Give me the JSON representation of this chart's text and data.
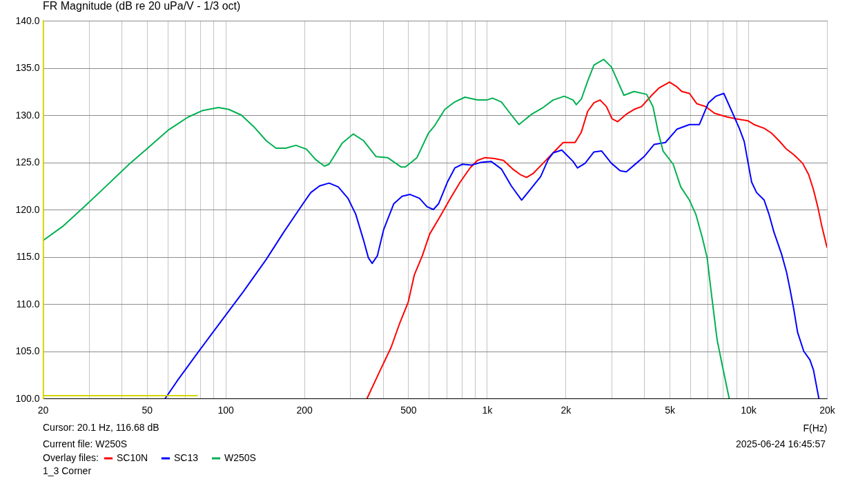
{
  "chart_data": {
    "type": "line",
    "title": "FR Magnitude (dB re 20 uPa/V - 1/3 oct)",
    "xlabel": "F(Hz)",
    "legend_title": "Overlay files:",
    "annotations": [
      "Cursor: 20.1 Hz, 116.68 dB",
      "Current file: W250S",
      "1_3 Corner",
      "2025-06-24  16:45:57"
    ],
    "log": "x",
    "grid": true,
    "legend": "bottom left",
    "xlim": [
      20,
      20000
    ],
    "ylim": [
      100,
      140
    ],
    "xticks": [
      20,
      {
        "value": 30,
        "label": null
      },
      {
        "value": 40,
        "label": null
      },
      50,
      {
        "value": 60,
        "label": null
      },
      {
        "value": 70,
        "label": null
      },
      {
        "value": 80,
        "label": null
      },
      {
        "value": 90,
        "label": null
      },
      100,
      200,
      {
        "value": 300,
        "label": null
      },
      {
        "value": 400,
        "label": null
      },
      500,
      {
        "value": 600,
        "label": null
      },
      {
        "value": 700,
        "label": null
      },
      {
        "value": 800,
        "label": null
      },
      {
        "value": 900,
        "label": null
      },
      {
        "value": 1000,
        "label": "1k"
      },
      {
        "value": 2000,
        "label": "2k"
      },
      {
        "value": 3000,
        "label": null
      },
      {
        "value": 4000,
        "label": null
      },
      {
        "value": 5000,
        "label": "5k"
      },
      {
        "value": 6000,
        "label": null
      },
      {
        "value": 7000,
        "label": null
      },
      {
        "value": 8000,
        "label": null
      },
      {
        "value": 9000,
        "label": null
      },
      {
        "value": 10000,
        "label": "10k"
      },
      {
        "value": 20000,
        "label": "20k"
      }
    ],
    "yticks": [
      {
        "value": 100,
        "label": "100.0"
      },
      {
        "value": 105,
        "label": "105.0"
      },
      {
        "value": 110,
        "label": "110.0"
      },
      {
        "value": 115,
        "label": "115.0"
      },
      {
        "value": 120,
        "label": "120.0"
      },
      {
        "value": 125,
        "label": "125.0"
      },
      {
        "value": 130,
        "label": "130.0"
      },
      {
        "value": 135,
        "label": "135.0"
      },
      {
        "value": 140,
        "label": "140.0"
      }
    ],
    "ref_lines": [
      {
        "axis": "x",
        "value": 20.1,
        "color": "#d4d400"
      }
    ],
    "series": [
      {
        "name": "SC10N",
        "color": "#ff0000",
        "x": [
          348,
          388,
          430,
          466,
          500,
          528,
          566,
          604,
          660,
          722,
          790,
          862,
          920,
          984,
          1070,
          1158,
          1254,
          1342,
          1418,
          1500,
          1640,
          1792,
          1958,
          2080,
          2174,
          2298,
          2430,
          2568,
          2710,
          2866,
          3014,
          3164,
          3416,
          3654,
          3906,
          4272,
          4568,
          4996,
          5330,
          5570,
          5954,
          6360,
          6880,
          7420,
          8300,
          9020,
          9960,
          10520,
          11500,
          12260,
          13100,
          14000,
          14940,
          16140,
          17020,
          17760,
          18440,
          19060,
          20000
        ],
        "values": [
          100.0,
          102.8,
          105.4,
          108.1,
          110.2,
          113.1,
          115.1,
          117.4,
          119.2,
          121.1,
          122.9,
          124.4,
          125.2,
          125.5,
          125.4,
          125.2,
          124.3,
          123.7,
          123.4,
          123.8,
          124.9,
          126.0,
          127.1,
          127.1,
          127.1,
          128.2,
          130.4,
          131.3,
          131.6,
          130.9,
          129.6,
          129.3,
          130.1,
          130.6,
          130.9,
          132.1,
          132.9,
          133.5,
          133.0,
          132.5,
          132.3,
          131.2,
          130.9,
          130.2,
          129.8,
          129.6,
          129.4,
          129.0,
          128.6,
          128.1,
          127.3,
          126.4,
          125.8,
          124.9,
          123.7,
          122.1,
          120.3,
          118.4,
          116.0
        ]
      },
      {
        "name": "SC13",
        "color": "#0000ff",
        "x": [
          58.8,
          65.9,
          78.6,
          98.2,
          117,
          143,
          167,
          200,
          212,
          229,
          249,
          270,
          294,
          315,
          337,
          352,
          364,
          381,
          403,
          440,
          474,
          508,
          552,
          590,
          624,
          653,
          706,
          754,
          806,
          870,
          952,
          1038,
          1136,
          1240,
          1358,
          1484,
          1606,
          1716,
          1792,
          1934,
          2136,
          2222,
          2376,
          2568,
          2748,
          2994,
          3236,
          3416,
          3730,
          3992,
          4368,
          4820,
          5330,
          5954,
          6500,
          7040,
          7520,
          8060,
          8650,
          9240,
          9650,
          9960,
          10300,
          10760,
          11500,
          12000,
          12540,
          13400,
          14000,
          14460,
          14940,
          15440,
          16300,
          17200,
          17760,
          18620
        ],
        "values": [
          100.0,
          102.0,
          104.9,
          108.5,
          111.3,
          114.7,
          117.6,
          120.8,
          121.8,
          122.5,
          122.8,
          122.4,
          121.2,
          119.5,
          116.8,
          114.9,
          114.3,
          115.1,
          117.9,
          120.6,
          121.4,
          121.6,
          121.2,
          120.3,
          120.0,
          120.6,
          122.9,
          124.4,
          124.8,
          124.7,
          125.0,
          125.1,
          124.3,
          122.5,
          121.0,
          122.3,
          123.5,
          125.3,
          126.0,
          126.3,
          125.1,
          124.4,
          124.9,
          126.1,
          126.2,
          124.9,
          124.1,
          124.0,
          124.9,
          125.6,
          126.9,
          127.1,
          128.5,
          129.0,
          129.0,
          131.3,
          132.0,
          132.3,
          130.4,
          128.6,
          127.2,
          125.1,
          122.9,
          121.8,
          121.0,
          119.5,
          117.6,
          115.3,
          113.4,
          111.5,
          109.4,
          107.0,
          105.0,
          104.1,
          103.0,
          100.0
        ]
      },
      {
        "name": "W250S",
        "color": "#00b050",
        "x": [
          20,
          23.8,
          28.8,
          34.7,
          42.4,
          49.4,
          60.3,
          72,
          82,
          94,
          103,
          115,
          128,
          143,
          156,
          170,
          186,
          204,
          221,
          239,
          249,
          279,
          308,
          337,
          377,
          417,
          470,
          488,
          540,
          598,
          632,
          690,
          754,
          824,
          920,
          1000,
          1050,
          1136,
          1226,
          1326,
          1484,
          1640,
          1792,
          1978,
          2136,
          2198,
          2298,
          2430,
          2568,
          2800,
          2994,
          3164,
          3344,
          3654,
          4084,
          4320,
          4514,
          4720,
          5160,
          5516,
          5954,
          6300,
          6660,
          6960,
          7190,
          7352,
          7600,
          7940,
          8450
        ],
        "values": [
          116.7,
          118.2,
          120.3,
          122.4,
          124.7,
          126.3,
          128.4,
          129.8,
          130.5,
          130.8,
          130.6,
          130.0,
          128.8,
          127.3,
          126.5,
          126.5,
          126.8,
          126.4,
          125.3,
          124.6,
          124.8,
          127.0,
          128.0,
          127.3,
          125.6,
          125.5,
          124.5,
          124.5,
          125.5,
          128.1,
          128.9,
          130.6,
          131.4,
          131.9,
          131.6,
          131.6,
          131.8,
          131.4,
          130.2,
          129.0,
          130.1,
          130.8,
          131.6,
          132.0,
          131.6,
          131.1,
          131.7,
          133.6,
          135.3,
          135.9,
          135.1,
          133.6,
          132.1,
          132.5,
          132.2,
          130.9,
          128.3,
          126.2,
          124.8,
          122.4,
          121.0,
          119.5,
          117.1,
          114.9,
          111.6,
          109.4,
          106.2,
          103.6,
          100.0
        ]
      },
      {
        "color": "#d4d400",
        "x": [
          20,
          78
        ],
        "values": [
          100.3,
          100.3
        ]
      }
    ]
  }
}
